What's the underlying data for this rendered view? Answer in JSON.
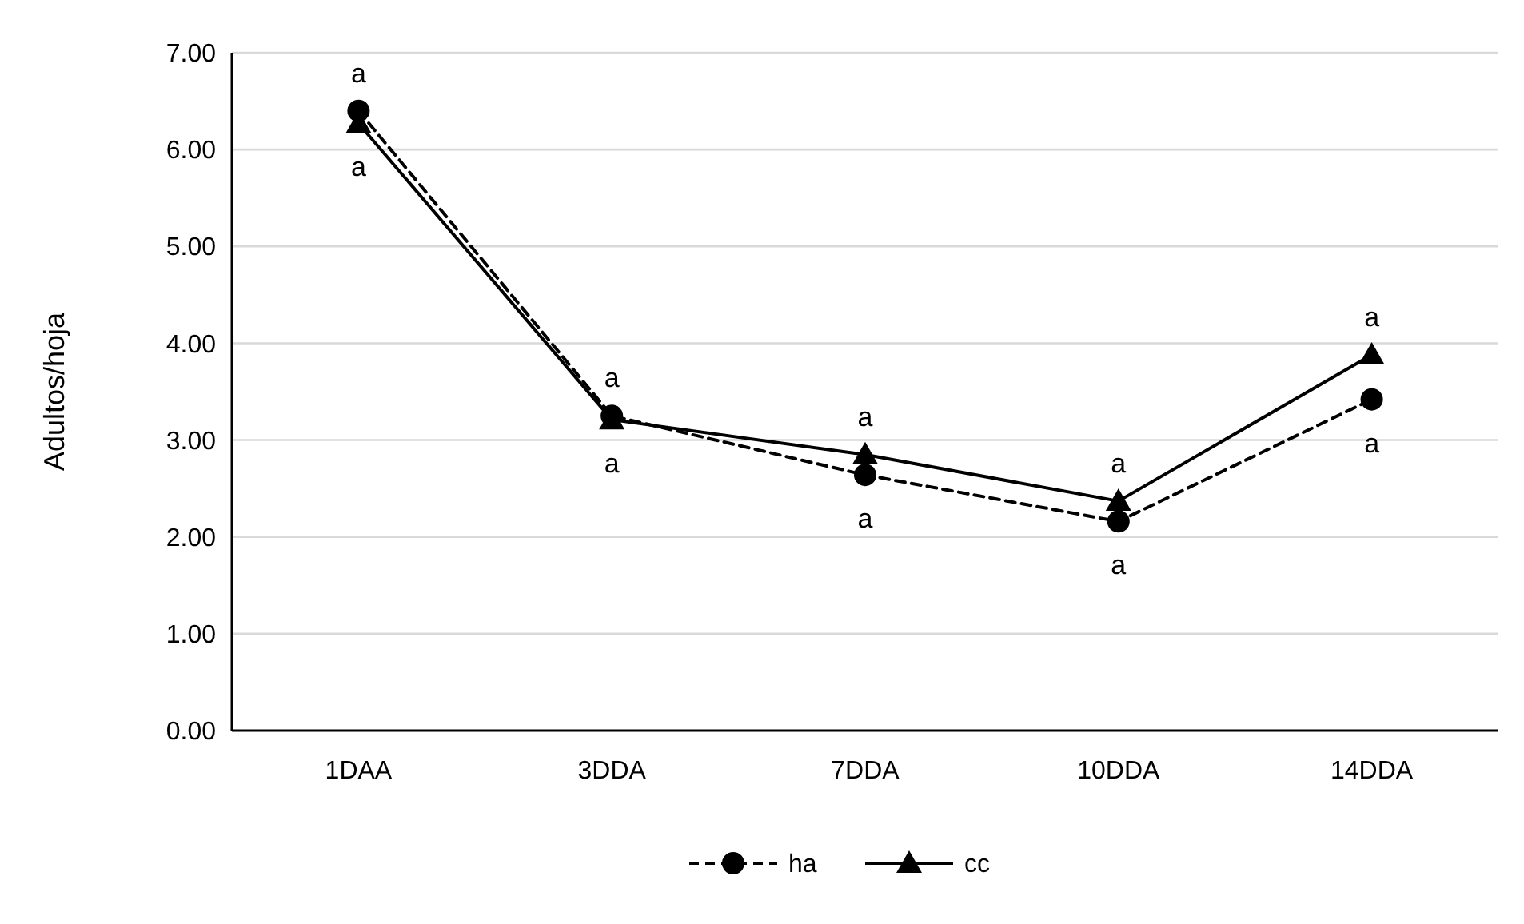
{
  "chart_data": {
    "type": "line",
    "ylabel": "Adultos/hoja",
    "categories": [
      "1DAA",
      "3DDA",
      "7DDA",
      "10DDA",
      "14DDA"
    ],
    "series": [
      {
        "name": "ha",
        "color": "#000000",
        "values": [
          6.4,
          3.25,
          2.64,
          2.16,
          3.42
        ],
        "marker": "circle",
        "line_style": "dashed"
      },
      {
        "name": "cc",
        "color": "#000000",
        "values": [
          6.27,
          3.21,
          2.85,
          2.37,
          3.88
        ],
        "marker": "triangle",
        "line_style": "solid"
      }
    ],
    "ylim": [
      0,
      7
    ],
    "yticks": [
      {
        "value": 0,
        "label": "0.00"
      },
      {
        "value": 1,
        "label": "1.00"
      },
      {
        "value": 2,
        "label": "2.00"
      },
      {
        "value": 3,
        "label": "3.00"
      },
      {
        "value": 4,
        "label": "4.00"
      },
      {
        "value": 5,
        "label": "5.00"
      },
      {
        "value": 6,
        "label": "6.00"
      },
      {
        "value": 7,
        "label": "7.00"
      }
    ],
    "grid": "y",
    "legend": "bottom",
    "annotations": [
      "a",
      "a",
      "a",
      "a",
      "a",
      "a",
      "a",
      "a",
      "a",
      "a"
    ]
  }
}
